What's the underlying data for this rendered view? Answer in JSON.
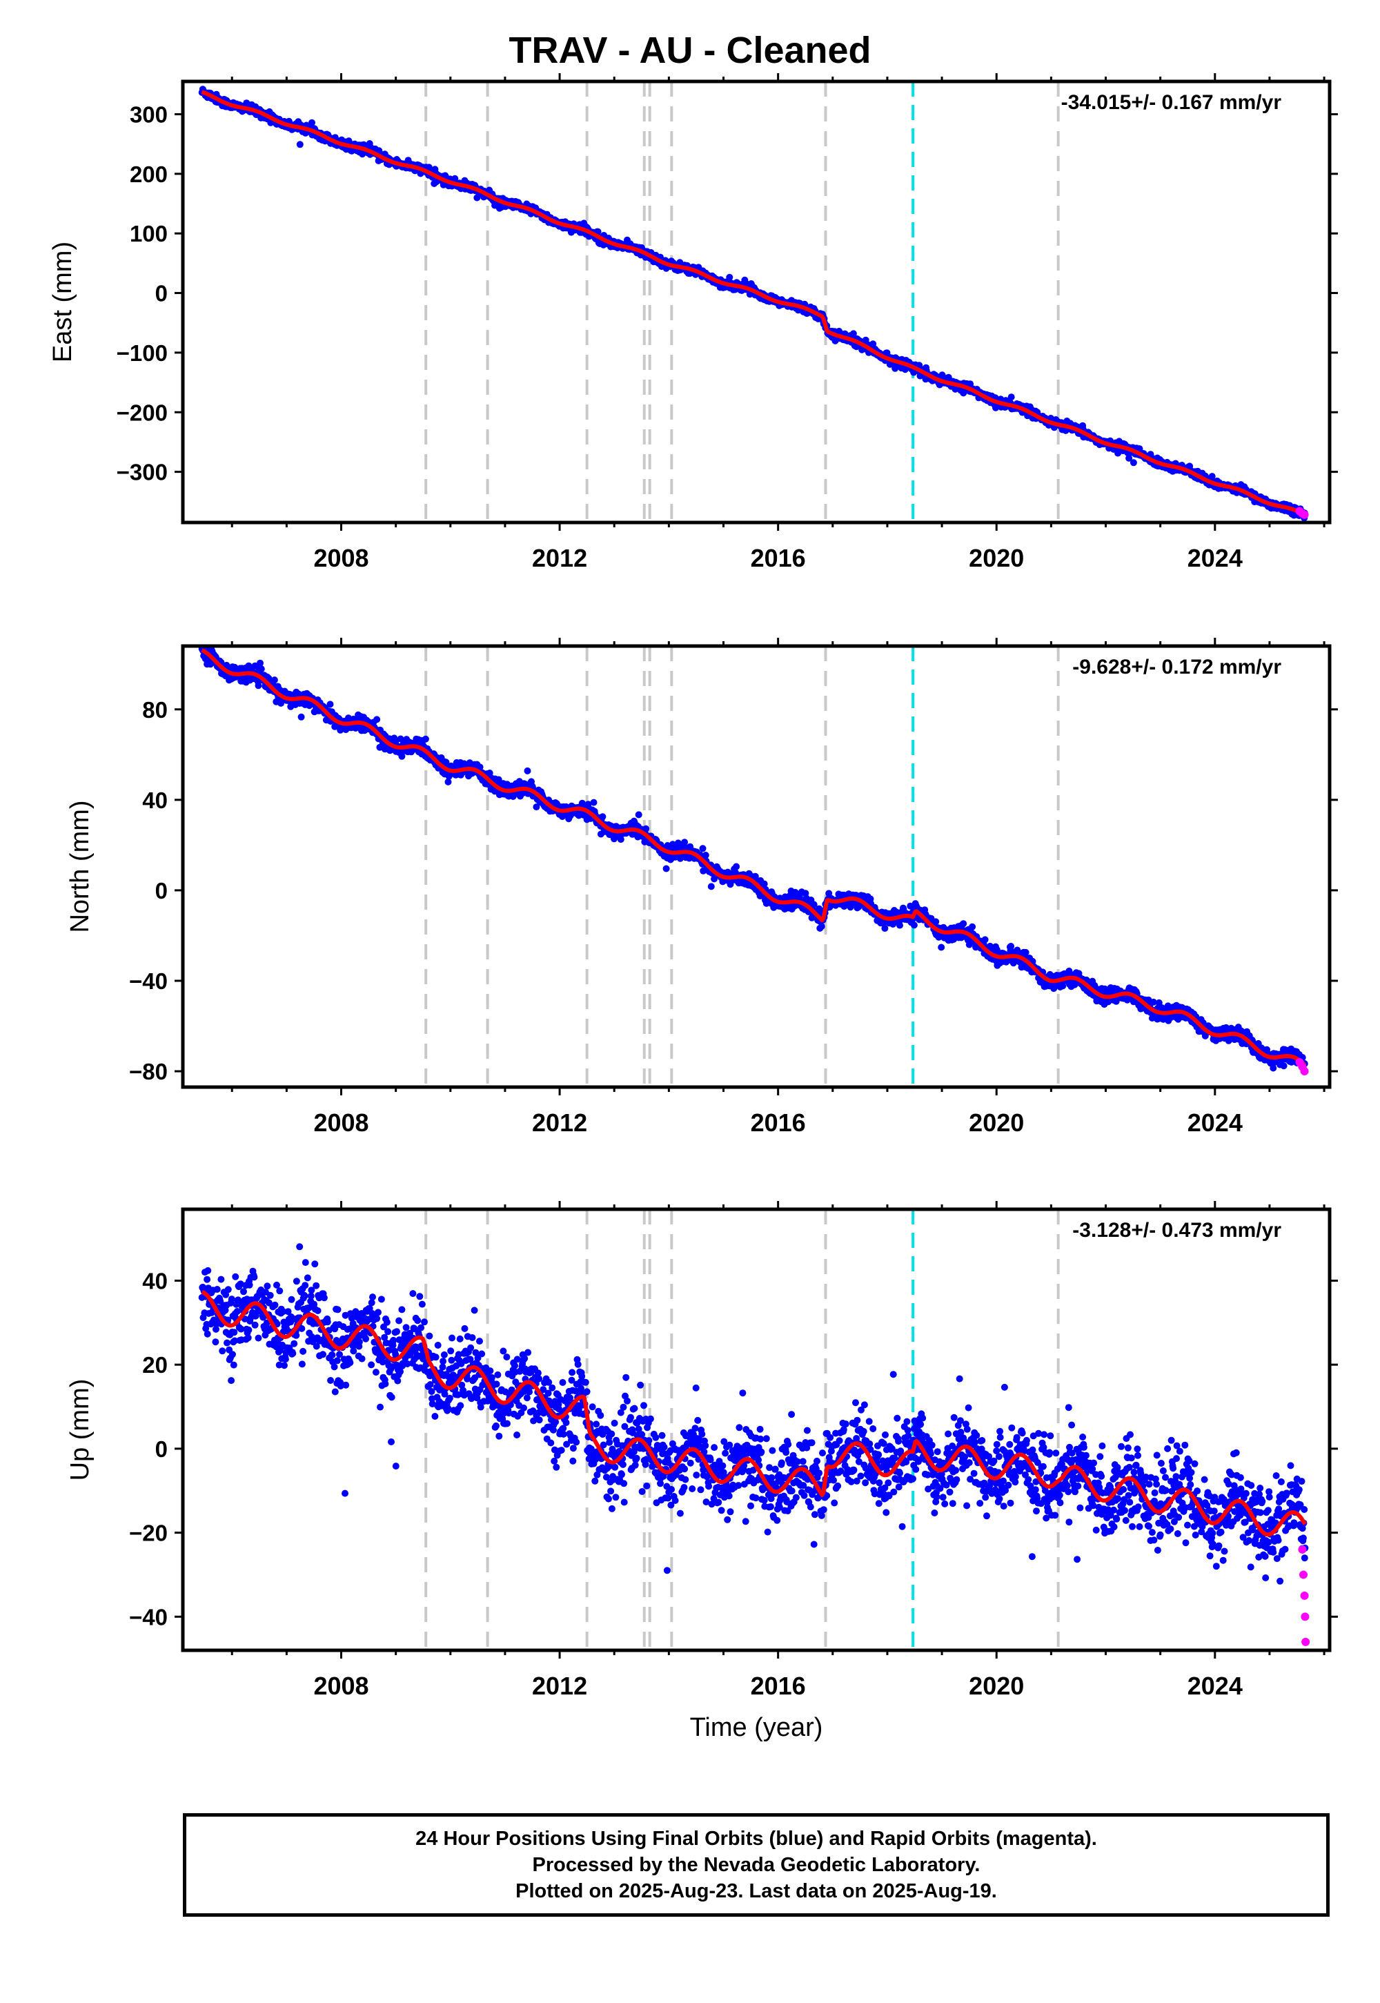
{
  "title": "TRAV  - AU - Cleaned",
  "colors": {
    "final": "#0000ff",
    "rapid": "#ff00ff",
    "model": "#ff0000",
    "event_gray": "#c8c8c8",
    "event_cyan": "#00e0e8"
  },
  "footer": {
    "line1": "24 Hour Positions Using Final Orbits (blue) and Rapid Orbits (magenta).",
    "line2": "Processed by the Nevada Geodetic Laboratory.",
    "line3": "Plotted on 2025-Aug-23. Last data on 2025-Aug-19."
  },
  "chart_data": [
    {
      "type": "scatter",
      "component": "East",
      "ylabel": "East (mm)",
      "xlabel": "",
      "rate_label": "-34.015+/- 0.167 mm/yr",
      "xlim": [
        2005.1,
        2026.1
      ],
      "ylim": [
        -385,
        355
      ],
      "yticks": [
        300,
        200,
        100,
        0,
        -100,
        -200,
        -300
      ],
      "ytick_labels": [
        "300",
        "200",
        "100",
        "0",
        "−100",
        "−200",
        "−300"
      ],
      "xticks": [
        2008,
        2012,
        2016,
        2020,
        2024
      ],
      "xtick_labels": [
        "2008",
        "2012",
        "2016",
        "2020",
        "2024"
      ],
      "event_lines_gray": [
        2009.55,
        2010.68,
        2012.5,
        2013.55,
        2013.65,
        2014.05,
        2016.87,
        2021.13
      ],
      "event_lines_cyan": [
        2018.47
      ],
      "model_knots": [
        [
          2005.45,
          335
        ],
        [
          2010.0,
          188
        ],
        [
          2014.0,
          50
        ],
        [
          2016.82,
          -38
        ],
        [
          2016.9,
          -62
        ],
        [
          2018.5,
          -128
        ],
        [
          2022.0,
          -250
        ],
        [
          2025.65,
          -373
        ]
      ],
      "annual_amplitude": 2.5,
      "scatter_sd": 3.5,
      "rapid_points": [
        [
          2025.55,
          -366
        ],
        [
          2025.6,
          -370
        ],
        [
          2025.64,
          -372
        ]
      ]
    },
    {
      "type": "scatter",
      "component": "North",
      "ylabel": "North (mm)",
      "xlabel": "",
      "rate_label": "-9.628+/- 0.172 mm/yr",
      "xlim": [
        2005.1,
        2026.1
      ],
      "ylim": [
        -87,
        108
      ],
      "yticks": [
        80,
        40,
        0,
        -40,
        -80
      ],
      "ytick_labels": [
        "80",
        "40",
        "0",
        "−40",
        "−80"
      ],
      "xticks": [
        2008,
        2012,
        2016,
        2020,
        2024
      ],
      "xtick_labels": [
        "2008",
        "2012",
        "2016",
        "2020",
        "2024"
      ],
      "event_lines_gray": [
        2009.55,
        2010.68,
        2012.5,
        2013.55,
        2013.65,
        2014.05,
        2016.87,
        2021.13
      ],
      "event_lines_cyan": [
        2018.47
      ],
      "model_knots": [
        [
          2005.45,
          104
        ],
        [
          2008.0,
          76
        ],
        [
          2010.0,
          55
        ],
        [
          2012.5,
          33
        ],
        [
          2014.0,
          19
        ],
        [
          2016.82,
          -12
        ],
        [
          2016.9,
          -2
        ],
        [
          2018.47,
          -14
        ],
        [
          2018.52,
          -11
        ],
        [
          2021.0,
          -38
        ],
        [
          2023.0,
          -52
        ],
        [
          2025.65,
          -78
        ]
      ],
      "annual_amplitude": 2.2,
      "scatter_sd": 1.6,
      "rapid_points": [
        [
          2025.55,
          -76
        ],
        [
          2025.6,
          -78
        ],
        [
          2025.64,
          -80
        ]
      ]
    },
    {
      "type": "scatter",
      "component": "Up",
      "ylabel": "Up (mm)",
      "xlabel": "Time (year)",
      "rate_label": "-3.128+/- 0.473 mm/yr",
      "xlim": [
        2005.1,
        2026.1
      ],
      "ylim": [
        -48,
        57
      ],
      "yticks": [
        40,
        20,
        0,
        -20,
        -40
      ],
      "ytick_labels": [
        "40",
        "20",
        "0",
        "−20",
        "−40"
      ],
      "xticks": [
        2008,
        2012,
        2016,
        2020,
        2024
      ],
      "xtick_labels": [
        "2008",
        "2012",
        "2016",
        "2020",
        "2024"
      ],
      "event_lines_gray": [
        2009.55,
        2010.68,
        2012.5,
        2013.55,
        2013.65,
        2014.05,
        2016.87,
        2021.13
      ],
      "event_lines_cyan": [
        2018.47
      ],
      "model_knots": [
        [
          2005.45,
          34
        ],
        [
          2009.5,
          23
        ],
        [
          2009.6,
          19
        ],
        [
          2012.45,
          9
        ],
        [
          2012.55,
          1
        ],
        [
          2016.82,
          -9
        ],
        [
          2016.9,
          -1
        ],
        [
          2018.47,
          -4
        ],
        [
          2018.52,
          -1
        ],
        [
          2021.1,
          -6
        ],
        [
          2021.2,
          -7
        ],
        [
          2025.65,
          -19
        ]
      ],
      "annual_amplitude": 3.3,
      "scatter_sd": 4.5,
      "rapid_points": [
        [
          2025.6,
          -24
        ],
        [
          2025.62,
          -30
        ],
        [
          2025.64,
          -35
        ],
        [
          2025.65,
          -40
        ],
        [
          2025.66,
          -46
        ]
      ]
    }
  ]
}
